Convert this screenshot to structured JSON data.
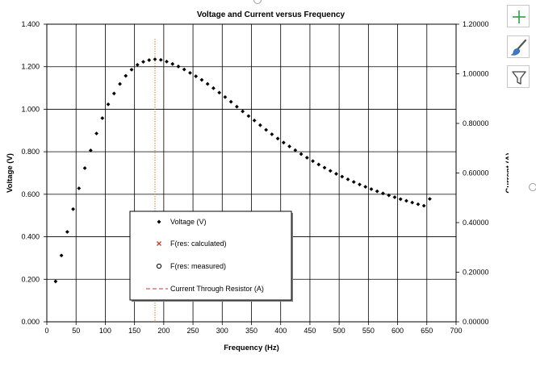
{
  "toolbar": {
    "chart_elements_icon": "plus-icon",
    "chart_styles_icon": "paintbrush-icon",
    "chart_filters_icon": "funnel-icon",
    "accent_green": "#2e9e44",
    "accent_blue": "#3b78c8"
  },
  "chart_data": {
    "type": "scatter",
    "title": "Voltage and Current versus Frequency",
    "xlabel": "Frequency (Hz)",
    "ylabel": "Voltage (V)",
    "y2label": "Current (A)",
    "xlim": [
      0,
      700
    ],
    "ylim": [
      0,
      1.4
    ],
    "y2lim": [
      0,
      1.2
    ],
    "x_ticks": [
      "0",
      "50",
      "100",
      "150",
      "200",
      "250",
      "300",
      "350",
      "400",
      "450",
      "500",
      "550",
      "600",
      "650",
      "700"
    ],
    "y_ticks": [
      "0.000",
      "0.200",
      "0.400",
      "0.600",
      "0.800",
      "1.000",
      "1.200",
      "1.400"
    ],
    "y2_ticks": [
      "0.00000",
      "0.20000",
      "0.40000",
      "0.60000",
      "0.80000",
      "1.00000",
      "1.20000"
    ],
    "grid": true,
    "legend_position": "lower-left",
    "series": [
      {
        "name": "Voltage (V)",
        "marker": "diamond",
        "color": "#000000",
        "x": [
          15,
          25,
          35,
          45,
          55,
          65,
          75,
          85,
          95,
          105,
          115,
          125,
          135,
          145,
          155,
          165,
          175,
          185,
          195,
          205,
          215,
          225,
          235,
          245,
          255,
          265,
          275,
          285,
          295,
          305,
          315,
          325,
          335,
          345,
          355,
          365,
          375,
          385,
          395,
          405,
          415,
          425,
          435,
          445,
          455,
          465,
          475,
          485,
          495,
          505,
          515,
          525,
          535,
          545,
          555,
          565,
          575,
          585,
          595,
          605,
          615,
          625,
          635,
          645,
          655
        ],
        "y": [
          0.19,
          0.312,
          0.423,
          0.53,
          0.628,
          0.723,
          0.806,
          0.886,
          0.958,
          1.023,
          1.074,
          1.119,
          1.157,
          1.186,
          1.209,
          1.223,
          1.231,
          1.235,
          1.232,
          1.224,
          1.213,
          1.201,
          1.187,
          1.171,
          1.155,
          1.138,
          1.119,
          1.099,
          1.078,
          1.057,
          1.035,
          1.012,
          0.99,
          0.968,
          0.947,
          0.925,
          0.903,
          0.882,
          0.862,
          0.843,
          0.825,
          0.807,
          0.789,
          0.772,
          0.756,
          0.74,
          0.725,
          0.71,
          0.696,
          0.683,
          0.67,
          0.658,
          0.646,
          0.635,
          0.624,
          0.614,
          0.604,
          0.595,
          0.586,
          0.577,
          0.569,
          0.561,
          0.553,
          0.546,
          0.578
        ]
      },
      {
        "name": "F(res: calculated)",
        "marker": "x",
        "color": "#c0392b",
        "x": [],
        "y": []
      },
      {
        "name": "F(res: measured)",
        "marker": "circle",
        "color": "#000000",
        "x": [],
        "y": []
      },
      {
        "name": "Current Through Resistor (A)",
        "marker": "dashed-line",
        "color": "#c0392b",
        "x": [],
        "y": []
      }
    ],
    "resonance_line": {
      "x": 185,
      "color": "#e67e22"
    }
  }
}
